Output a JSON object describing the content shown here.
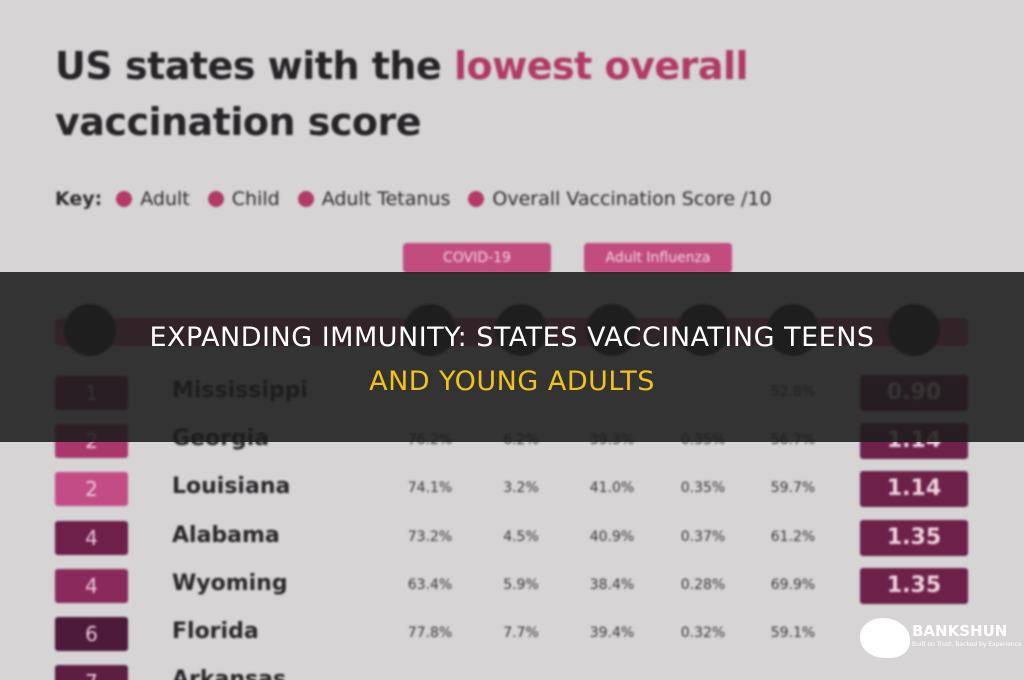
{
  "infographic": {
    "title_part1": "US states with the",
    "title_highlight": "lowest overall",
    "title_part2": "vaccination score",
    "key_label": "Key:",
    "key_items": [
      "Adult",
      "Child",
      "Adult Tetanus",
      "Overall Vaccination Score /10"
    ],
    "column_groups": [
      "COVID-19",
      "Adult Influenza"
    ],
    "rows": [
      {
        "rank": "1",
        "state": "Mississippi",
        "cells": [
          null,
          null,
          null,
          null,
          "52.8%"
        ],
        "score": "0.90"
      },
      {
        "rank": "2",
        "state": "Georgia",
        "cells": [
          "76.2%",
          "6.2%",
          "39.3%",
          "0.35%",
          "56.7%"
        ],
        "score": "1.14"
      },
      {
        "rank": "2",
        "state": "Louisiana",
        "cells": [
          "74.1%",
          "3.2%",
          "41.0%",
          "0.35%",
          "59.7%"
        ],
        "score": "1.14"
      },
      {
        "rank": "4",
        "state": "Alabama",
        "cells": [
          "73.2%",
          "4.5%",
          "40.9%",
          "0.37%",
          "61.2%"
        ],
        "score": "1.35"
      },
      {
        "rank": "4",
        "state": "Wyoming",
        "cells": [
          "63.4%",
          "5.9%",
          "38.4%",
          "0.28%",
          "69.9%"
        ],
        "score": "1.35"
      },
      {
        "rank": "6",
        "state": "Florida",
        "cells": [
          "77.8%",
          "7.7%",
          "39.4%",
          "0.32%",
          "59.1%"
        ],
        "score": null
      },
      {
        "rank": "7",
        "state": "Arkansas",
        "cells": [
          null,
          null,
          null,
          null,
          null
        ],
        "score": null
      }
    ]
  },
  "banner": {
    "line1": "EXPANDING IMMUNITY: STATES VACCINATING TEENS",
    "line2": "AND YOUNG ADULTS"
  },
  "logo": {
    "name": "BANKSHUN",
    "tagline": "Built on Trust, Backed by Experience"
  }
}
